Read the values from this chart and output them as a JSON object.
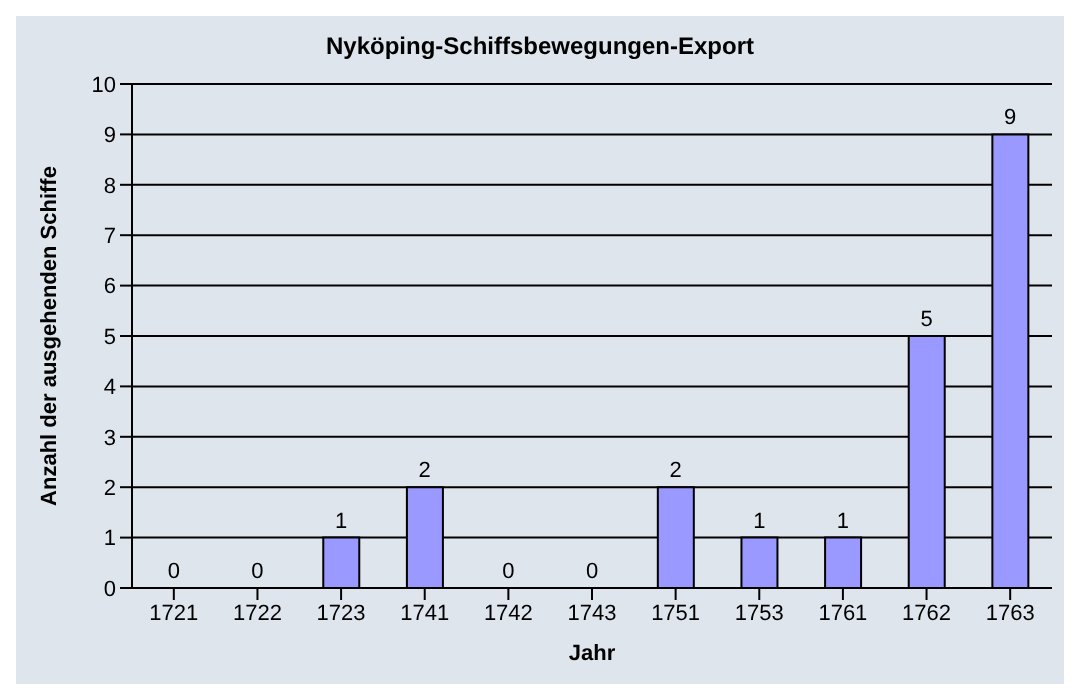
{
  "chart_data": {
    "type": "bar",
    "title": "Nyköping-Schiffsbewegungen-Export",
    "xlabel": "Jahr",
    "ylabel": "Anzahl der ausgehenden Schiffe",
    "categories": [
      "1721",
      "1722",
      "1723",
      "1741",
      "1742",
      "1743",
      "1751",
      "1753",
      "1761",
      "1762",
      "1763"
    ],
    "values": [
      0,
      0,
      1,
      2,
      0,
      0,
      2,
      1,
      1,
      5,
      9
    ],
    "color": "#9999ff",
    "ylim": [
      0,
      10
    ],
    "yticks": [
      0,
      1,
      2,
      3,
      4,
      5,
      6,
      7,
      8,
      9,
      10
    ],
    "grid": "y",
    "data_labels": true
  }
}
